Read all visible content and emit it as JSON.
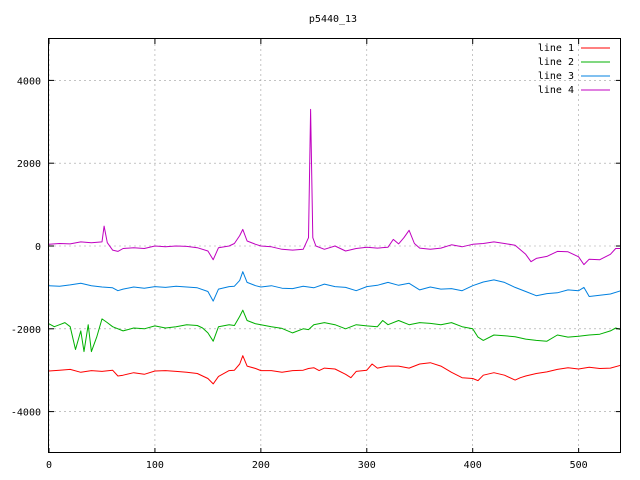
{
  "chart_data": {
    "type": "line",
    "title": "p5440_13",
    "xlabel": "",
    "ylabel": "",
    "xlim": [
      0,
      540
    ],
    "ylim": [
      -5000,
      5000
    ],
    "xticks": [
      0,
      100,
      200,
      300,
      400,
      500
    ],
    "yticks": [
      -4000,
      -2000,
      0,
      2000,
      4000
    ],
    "tick_labels_x": [
      "0",
      "100",
      "200",
      "300",
      "400",
      "500"
    ],
    "tick_labels_y": [
      "-4000",
      "-2000",
      "0",
      "2000",
      "4000"
    ],
    "grid": true,
    "legend_position": "top-right",
    "series": [
      {
        "name": "line 1",
        "color": "#ff0000",
        "points": [
          [
            0,
            -3020
          ],
          [
            10,
            -3000
          ],
          [
            20,
            -2980
          ],
          [
            30,
            -3050
          ],
          [
            40,
            -3010
          ],
          [
            50,
            -3030
          ],
          [
            60,
            -3000
          ],
          [
            65,
            -3140
          ],
          [
            70,
            -3120
          ],
          [
            80,
            -3060
          ],
          [
            90,
            -3100
          ],
          [
            100,
            -3020
          ],
          [
            110,
            -3010
          ],
          [
            120,
            -3030
          ],
          [
            130,
            -3050
          ],
          [
            140,
            -3080
          ],
          [
            150,
            -3200
          ],
          [
            155,
            -3330
          ],
          [
            160,
            -3150
          ],
          [
            170,
            -3010
          ],
          [
            175,
            -3000
          ],
          [
            180,
            -2850
          ],
          [
            183,
            -2650
          ],
          [
            187,
            -2900
          ],
          [
            195,
            -2960
          ],
          [
            200,
            -3010
          ],
          [
            210,
            -3010
          ],
          [
            220,
            -3050
          ],
          [
            230,
            -3010
          ],
          [
            240,
            -3000
          ],
          [
            245,
            -2960
          ],
          [
            250,
            -2940
          ],
          [
            255,
            -3010
          ],
          [
            260,
            -2950
          ],
          [
            270,
            -2970
          ],
          [
            280,
            -3100
          ],
          [
            285,
            -3180
          ],
          [
            290,
            -3030
          ],
          [
            300,
            -3000
          ],
          [
            305,
            -2850
          ],
          [
            310,
            -2950
          ],
          [
            320,
            -2900
          ],
          [
            330,
            -2900
          ],
          [
            340,
            -2950
          ],
          [
            350,
            -2850
          ],
          [
            360,
            -2820
          ],
          [
            370,
            -2900
          ],
          [
            380,
            -3050
          ],
          [
            390,
            -3180
          ],
          [
            400,
            -3200
          ],
          [
            405,
            -3250
          ],
          [
            410,
            -3120
          ],
          [
            420,
            -3060
          ],
          [
            430,
            -3120
          ],
          [
            440,
            -3240
          ],
          [
            445,
            -3180
          ],
          [
            450,
            -3140
          ],
          [
            460,
            -3080
          ],
          [
            470,
            -3040
          ],
          [
            480,
            -2980
          ],
          [
            490,
            -2940
          ],
          [
            500,
            -2970
          ],
          [
            510,
            -2930
          ],
          [
            520,
            -2960
          ],
          [
            530,
            -2950
          ],
          [
            540,
            -2880
          ]
        ]
      },
      {
        "name": "line 2",
        "color": "#00b000",
        "points": [
          [
            0,
            -1880
          ],
          [
            5,
            -1950
          ],
          [
            10,
            -1900
          ],
          [
            15,
            -1850
          ],
          [
            20,
            -1950
          ],
          [
            25,
            -2500
          ],
          [
            30,
            -2050
          ],
          [
            33,
            -2550
          ],
          [
            37,
            -1900
          ],
          [
            40,
            -2550
          ],
          [
            45,
            -2200
          ],
          [
            50,
            -1760
          ],
          [
            55,
            -1850
          ],
          [
            60,
            -1950
          ],
          [
            70,
            -2050
          ],
          [
            80,
            -1980
          ],
          [
            90,
            -2000
          ],
          [
            100,
            -1930
          ],
          [
            110,
            -1980
          ],
          [
            120,
            -1950
          ],
          [
            130,
            -1900
          ],
          [
            140,
            -1920
          ],
          [
            145,
            -1980
          ],
          [
            150,
            -2100
          ],
          [
            155,
            -2300
          ],
          [
            160,
            -1950
          ],
          [
            170,
            -1900
          ],
          [
            175,
            -1920
          ],
          [
            180,
            -1700
          ],
          [
            183,
            -1550
          ],
          [
            187,
            -1800
          ],
          [
            195,
            -1880
          ],
          [
            200,
            -1900
          ],
          [
            210,
            -1950
          ],
          [
            220,
            -1990
          ],
          [
            230,
            -2100
          ],
          [
            240,
            -2000
          ],
          [
            245,
            -2020
          ],
          [
            250,
            -1900
          ],
          [
            260,
            -1850
          ],
          [
            270,
            -1900
          ],
          [
            280,
            -2000
          ],
          [
            290,
            -1900
          ],
          [
            300,
            -1930
          ],
          [
            310,
            -1950
          ],
          [
            315,
            -1800
          ],
          [
            320,
            -1900
          ],
          [
            330,
            -1800
          ],
          [
            340,
            -1900
          ],
          [
            350,
            -1850
          ],
          [
            360,
            -1870
          ],
          [
            370,
            -1900
          ],
          [
            380,
            -1850
          ],
          [
            390,
            -1950
          ],
          [
            400,
            -2000
          ],
          [
            405,
            -2200
          ],
          [
            410,
            -2280
          ],
          [
            420,
            -2150
          ],
          [
            430,
            -2170
          ],
          [
            440,
            -2190
          ],
          [
            450,
            -2250
          ],
          [
            460,
            -2280
          ],
          [
            470,
            -2300
          ],
          [
            480,
            -2150
          ],
          [
            490,
            -2200
          ],
          [
            500,
            -2180
          ],
          [
            510,
            -2150
          ],
          [
            520,
            -2130
          ],
          [
            530,
            -2050
          ],
          [
            535,
            -1980
          ],
          [
            540,
            -2020
          ]
        ]
      },
      {
        "name": "line 3",
        "color": "#0080e0",
        "points": [
          [
            0,
            -960
          ],
          [
            10,
            -970
          ],
          [
            20,
            -940
          ],
          [
            30,
            -900
          ],
          [
            40,
            -960
          ],
          [
            50,
            -990
          ],
          [
            60,
            -1010
          ],
          [
            65,
            -1080
          ],
          [
            70,
            -1040
          ],
          [
            80,
            -990
          ],
          [
            90,
            -1020
          ],
          [
            100,
            -980
          ],
          [
            110,
            -1000
          ],
          [
            120,
            -970
          ],
          [
            130,
            -990
          ],
          [
            140,
            -1010
          ],
          [
            150,
            -1100
          ],
          [
            155,
            -1330
          ],
          [
            160,
            -1040
          ],
          [
            170,
            -980
          ],
          [
            175,
            -970
          ],
          [
            180,
            -830
          ],
          [
            183,
            -620
          ],
          [
            187,
            -880
          ],
          [
            195,
            -960
          ],
          [
            200,
            -990
          ],
          [
            210,
            -960
          ],
          [
            220,
            -1020
          ],
          [
            230,
            -1030
          ],
          [
            240,
            -970
          ],
          [
            250,
            -1010
          ],
          [
            260,
            -920
          ],
          [
            270,
            -980
          ],
          [
            280,
            -1000
          ],
          [
            290,
            -1080
          ],
          [
            300,
            -980
          ],
          [
            310,
            -950
          ],
          [
            320,
            -880
          ],
          [
            330,
            -950
          ],
          [
            340,
            -900
          ],
          [
            350,
            -1060
          ],
          [
            360,
            -990
          ],
          [
            370,
            -1040
          ],
          [
            380,
            -1030
          ],
          [
            390,
            -1080
          ],
          [
            400,
            -960
          ],
          [
            410,
            -870
          ],
          [
            420,
            -820
          ],
          [
            430,
            -880
          ],
          [
            440,
            -1000
          ],
          [
            450,
            -1100
          ],
          [
            460,
            -1200
          ],
          [
            470,
            -1150
          ],
          [
            480,
            -1130
          ],
          [
            490,
            -1060
          ],
          [
            500,
            -1080
          ],
          [
            505,
            -1000
          ],
          [
            510,
            -1220
          ],
          [
            520,
            -1190
          ],
          [
            530,
            -1160
          ],
          [
            540,
            -1080
          ]
        ]
      },
      {
        "name": "line 4",
        "color": "#c000c0",
        "points": [
          [
            0,
            40
          ],
          [
            10,
            60
          ],
          [
            20,
            50
          ],
          [
            30,
            100
          ],
          [
            40,
            80
          ],
          [
            50,
            100
          ],
          [
            52,
            480
          ],
          [
            55,
            80
          ],
          [
            60,
            -100
          ],
          [
            65,
            -130
          ],
          [
            70,
            -60
          ],
          [
            80,
            -40
          ],
          [
            90,
            -60
          ],
          [
            100,
            0
          ],
          [
            110,
            -20
          ],
          [
            120,
            0
          ],
          [
            130,
            -10
          ],
          [
            140,
            -40
          ],
          [
            150,
            -120
          ],
          [
            155,
            -330
          ],
          [
            160,
            -40
          ],
          [
            170,
            0
          ],
          [
            175,
            60
          ],
          [
            180,
            250
          ],
          [
            183,
            400
          ],
          [
            187,
            120
          ],
          [
            195,
            40
          ],
          [
            200,
            0
          ],
          [
            210,
            -20
          ],
          [
            220,
            -80
          ],
          [
            230,
            -100
          ],
          [
            240,
            -80
          ],
          [
            245,
            200
          ],
          [
            247,
            3300
          ],
          [
            249,
            200
          ],
          [
            252,
            0
          ],
          [
            260,
            -80
          ],
          [
            270,
            0
          ],
          [
            280,
            -120
          ],
          [
            290,
            -60
          ],
          [
            300,
            -30
          ],
          [
            310,
            -50
          ],
          [
            320,
            -30
          ],
          [
            325,
            160
          ],
          [
            330,
            50
          ],
          [
            335,
            200
          ],
          [
            340,
            380
          ],
          [
            345,
            60
          ],
          [
            350,
            -50
          ],
          [
            360,
            -80
          ],
          [
            370,
            -50
          ],
          [
            380,
            30
          ],
          [
            390,
            -20
          ],
          [
            400,
            40
          ],
          [
            410,
            60
          ],
          [
            420,
            100
          ],
          [
            430,
            60
          ],
          [
            440,
            20
          ],
          [
            450,
            -200
          ],
          [
            455,
            -380
          ],
          [
            460,
            -300
          ],
          [
            470,
            -250
          ],
          [
            480,
            -130
          ],
          [
            490,
            -140
          ],
          [
            500,
            -260
          ],
          [
            505,
            -450
          ],
          [
            510,
            -320
          ],
          [
            520,
            -330
          ],
          [
            530,
            -200
          ],
          [
            535,
            -60
          ],
          [
            540,
            -60
          ]
        ]
      }
    ]
  }
}
